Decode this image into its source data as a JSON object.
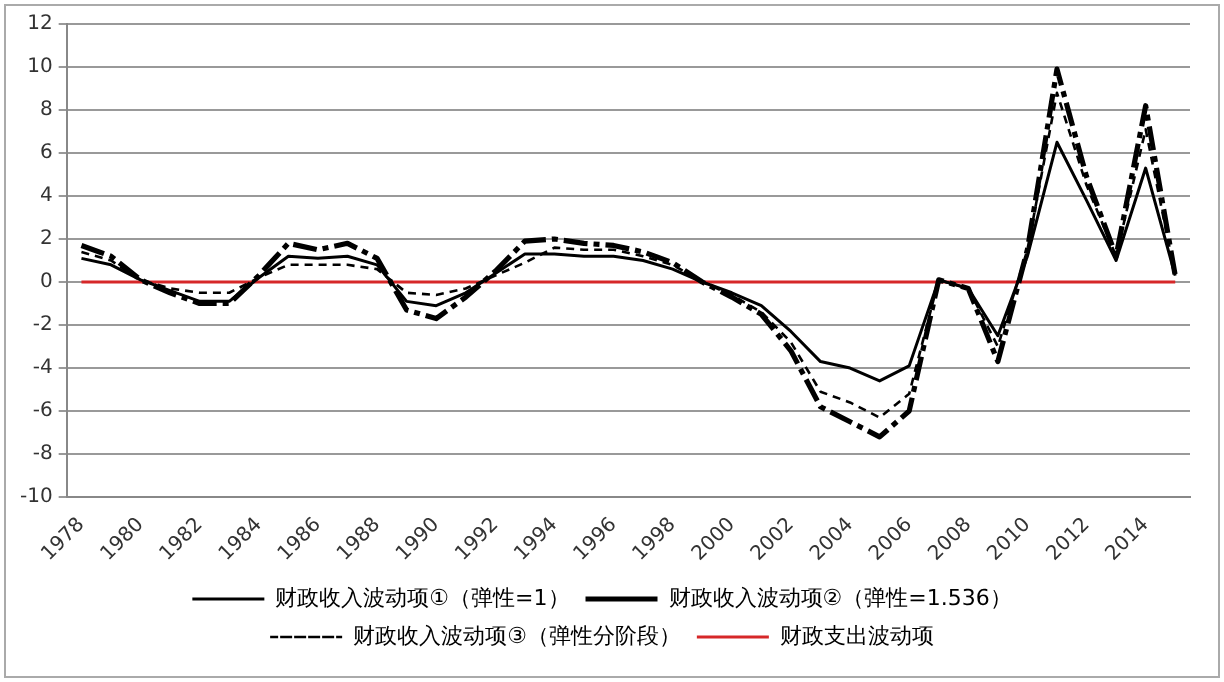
{
  "chart_data": {
    "type": "line",
    "categories": [
      "1978",
      null,
      "1980",
      null,
      "1982",
      null,
      "1984",
      null,
      "1986",
      null,
      "1988",
      null,
      "1990",
      null,
      "1992",
      null,
      "1994",
      null,
      "1996",
      null,
      "1998",
      null,
      "2000",
      null,
      "2002",
      null,
      "2004",
      null,
      "2006",
      null,
      "2008",
      null,
      "2010",
      null,
      "2012",
      null,
      "2014",
      null
    ],
    "series": [
      {
        "name": "财政收入波动项①（弹性=1）",
        "color": "#000000",
        "line_style": "solid",
        "values": [
          1.1,
          0.8,
          0.1,
          -0.4,
          -0.9,
          -0.9,
          0.2,
          1.2,
          1.1,
          1.2,
          0.8,
          -0.9,
          -1.1,
          -0.5,
          0.4,
          1.3,
          1.3,
          1.2,
          1.2,
          1.0,
          0.6,
          0,
          -0.5,
          -1.1,
          -2.3,
          -3.7,
          -4.0,
          -4.6,
          -3.9,
          0.1,
          -0.3,
          -2.5,
          1.2,
          6.5,
          3.8,
          1.0,
          5.3,
          0.3
        ]
      },
      {
        "name": "财政收入波动项②（弹性=1.536）",
        "color": "#000000",
        "line_style": "dashed",
        "values": [
          1.7,
          1.2,
          0.1,
          -0.5,
          -1.0,
          -1.0,
          0.3,
          1.8,
          1.5,
          1.8,
          1.1,
          -1.3,
          -1.7,
          -0.7,
          0.5,
          1.9,
          2.0,
          1.8,
          1.7,
          1.4,
          0.9,
          0,
          -0.7,
          -1.5,
          -3.2,
          -5.8,
          -6.5,
          -7.2,
          -6.0,
          0.1,
          -0.3,
          -3.7,
          1.5,
          9.9,
          4.9,
          1.2,
          8.2,
          0.3
        ]
      },
      {
        "name": "财政收入波动项③（弹性分阶段）",
        "color": "#000000",
        "line_style": "dotted",
        "values": [
          1.4,
          1.0,
          0.1,
          -0.3,
          -0.5,
          -0.5,
          0.2,
          0.8,
          0.8,
          0.8,
          0.6,
          -0.5,
          -0.6,
          -0.3,
          0.3,
          0.9,
          1.6,
          1.5,
          1.5,
          1.2,
          0.8,
          0,
          -0.6,
          -1.4,
          -2.8,
          -5.1,
          -5.6,
          -6.3,
          -5.2,
          0.1,
          -0.3,
          -3.0,
          1.5,
          8.8,
          4.5,
          1.2,
          7.1,
          0.3
        ]
      },
      {
        "name": "财政支出波动项",
        "color": "#d62728",
        "line_style": "solid",
        "values": [
          0,
          0,
          0,
          0,
          0,
          0,
          0,
          0,
          0,
          0,
          0,
          0,
          0,
          0,
          0,
          0,
          0,
          0,
          0,
          0,
          0,
          0,
          0,
          0,
          0,
          0,
          0,
          0,
          0,
          0,
          0,
          0,
          0,
          0,
          0,
          0,
          0,
          0
        ]
      }
    ],
    "ylim": [
      -10,
      12
    ],
    "yticks": [
      -10,
      -8,
      -6,
      -4,
      -2,
      0,
      2,
      4,
      6,
      8,
      10,
      12
    ],
    "grid": "y",
    "legend": "bottom",
    "marker": "none"
  }
}
